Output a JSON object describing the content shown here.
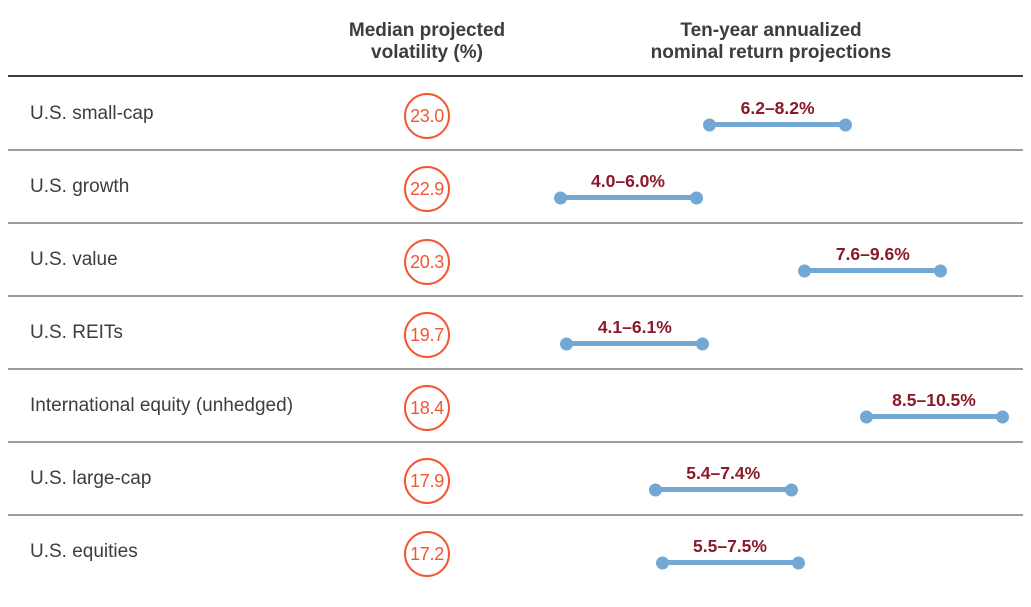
{
  "header": {
    "volatility_column": "Median projected\nvolatility (%)",
    "returns_column": "Ten-year annualized\nnominal return projections"
  },
  "rows": [
    {
      "label": "U.S. small-cap",
      "volatility": "23.0",
      "range_label": "6.2–8.2%",
      "low": 6.2,
      "high": 8.2
    },
    {
      "label": "U.S. growth",
      "volatility": "22.9",
      "range_label": "4.0–6.0%",
      "low": 4.0,
      "high": 6.0
    },
    {
      "label": "U.S. value",
      "volatility": "20.3",
      "range_label": "7.6–9.6%",
      "low": 7.6,
      "high": 9.6
    },
    {
      "label": "U.S. REITs",
      "volatility": "19.7",
      "range_label": "4.1–6.1%",
      "low": 4.1,
      "high": 6.1
    },
    {
      "label": "International equity (unhedged)",
      "volatility": "18.4",
      "range_label": "8.5–10.5%",
      "low": 8.5,
      "high": 10.5
    },
    {
      "label": "U.S. large-cap",
      "volatility": "17.9",
      "range_label": "5.4–7.4%",
      "low": 5.4,
      "high": 7.4
    },
    {
      "label": "U.S. equities",
      "volatility": "17.2",
      "range_label": "5.5–7.5%",
      "low": 5.5,
      "high": 7.5
    }
  ],
  "colors": {
    "accent_orange": "#F35632",
    "bar_blue": "#73A8D4",
    "range_text_maroon": "#8A1A2B",
    "text_dark": "#3D3D3D",
    "rule_dark": "#3E3E3E",
    "separator_gray": "#9C9C9C"
  },
  "chart_data": {
    "type": "bar",
    "subtype": "horizontal dumbbell range chart with circled value column",
    "title": "",
    "categories": [
      "U.S. small-cap",
      "U.S. growth",
      "U.S. value",
      "U.S. REITs",
      "International equity (unhedged)",
      "U.S. large-cap",
      "U.S. equities"
    ],
    "series": [
      {
        "name": "Median projected volatility (%)",
        "values": [
          23.0,
          22.9,
          20.3,
          19.7,
          18.4,
          17.9,
          17.2
        ]
      },
      {
        "name": "Ten-year annualized nominal return low (%)",
        "values": [
          6.2,
          4.0,
          7.6,
          4.1,
          8.5,
          5.4,
          5.5
        ]
      },
      {
        "name": "Ten-year annualized nominal return high (%)",
        "values": [
          8.2,
          6.0,
          9.6,
          6.1,
          10.5,
          7.4,
          7.5
        ]
      }
    ],
    "range_labels": [
      "6.2–8.2%",
      "4.0–6.0%",
      "7.6–9.6%",
      "4.1–6.1%",
      "8.5–10.5%",
      "5.4–7.4%",
      "5.5–7.5%"
    ],
    "xlabel": "",
    "ylabel": "",
    "xlim": [
      3.5,
      11
    ],
    "grid": false,
    "legend_position": "none",
    "column_headers": [
      "Median projected volatility (%)",
      "Ten-year annualized nominal return projections"
    ]
  }
}
